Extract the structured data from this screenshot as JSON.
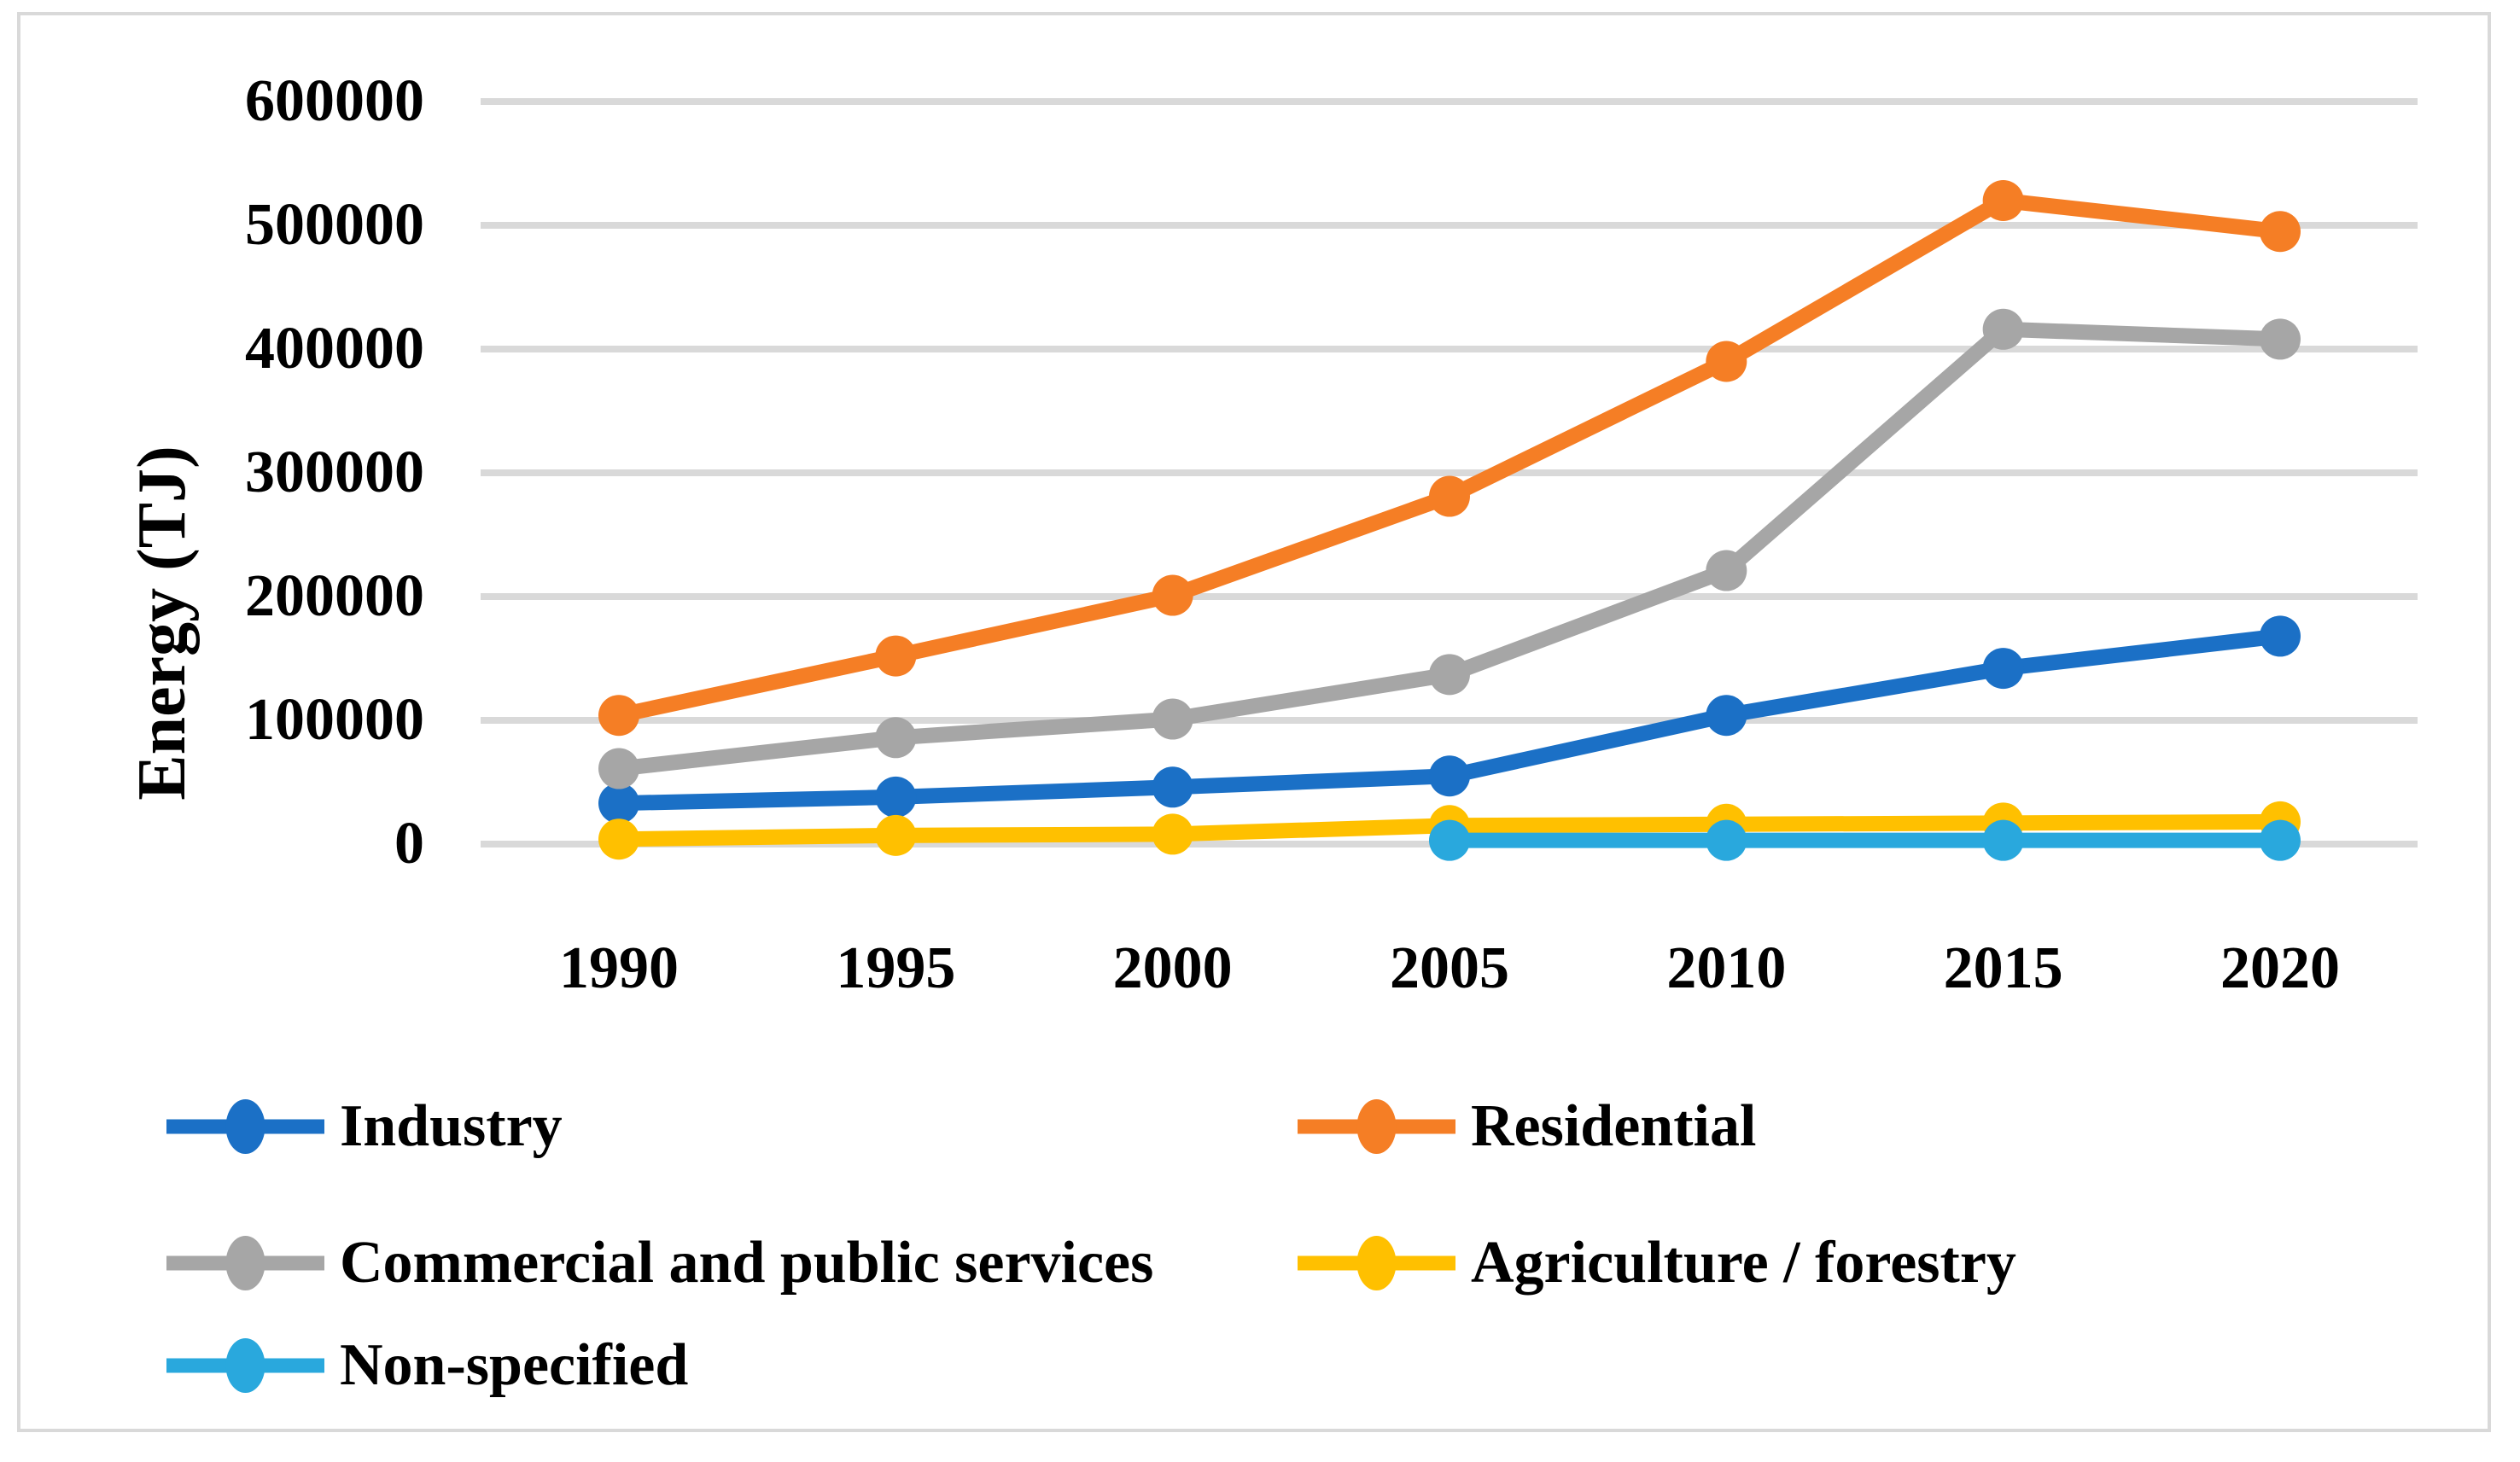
{
  "figure": {
    "background_color": "#FFFFFF",
    "border_color": "#D9D9D9",
    "gridline_color": "#D9D9D9"
  },
  "y_axis": {
    "title": "Energy (TJ)",
    "ticks": [
      "600000",
      "500000",
      "400000",
      "300000",
      "200000",
      "100000",
      "0"
    ]
  },
  "x_axis": {
    "ticks": [
      "1990",
      "1995",
      "2000",
      "2005",
      "2010",
      "2015",
      "2020"
    ]
  },
  "legend": [
    {
      "label": "Industry",
      "color": "#1B70C6",
      "column": 0,
      "row": 0
    },
    {
      "label": "Residential",
      "color": "#F57E25",
      "column": 1,
      "row": 0
    },
    {
      "label": "Commercial and public services",
      "color": "#A6A6A6",
      "column": 0,
      "row": 1
    },
    {
      "label": "Agriculture / forestry",
      "color": "#FFC000",
      "column": 1,
      "row": 1
    },
    {
      "label": "Non-specified",
      "color": "#29A8DD",
      "column": 0,
      "row": 2
    }
  ],
  "chart_data": {
    "type": "line",
    "x": [
      1990,
      1995,
      2000,
      2005,
      2010,
      2015,
      2020
    ],
    "series": [
      {
        "name": "Industry",
        "color": "#1B70C6",
        "values": [
          33000,
          38000,
          46000,
          55000,
          104000,
          142000,
          168000
        ]
      },
      {
        "name": "Residential",
        "color": "#F57E25",
        "values": [
          104000,
          152000,
          201000,
          281000,
          390000,
          520000,
          495000
        ]
      },
      {
        "name": "Commercial and public services",
        "color": "#A6A6A6",
        "values": [
          61000,
          86000,
          101000,
          137000,
          221000,
          416000,
          408000
        ]
      },
      {
        "name": "Agriculture / forestry",
        "color": "#FFC000",
        "values": [
          4000,
          7000,
          8000,
          15000,
          16000,
          17000,
          18000
        ]
      },
      {
        "name": "Non-specified",
        "color": "#29A8DD",
        "values": [
          null,
          null,
          null,
          3000,
          3000,
          3000,
          3000
        ]
      }
    ],
    "title": "",
    "xlabel": "",
    "ylabel": "Energy (TJ)",
    "ylim": [
      0,
      600000
    ],
    "y_tick_step": 100000,
    "grid": true,
    "legend_position": "bottom-left-two-columns",
    "marker": "circle",
    "line_width": 18,
    "marker_radius": 24
  }
}
